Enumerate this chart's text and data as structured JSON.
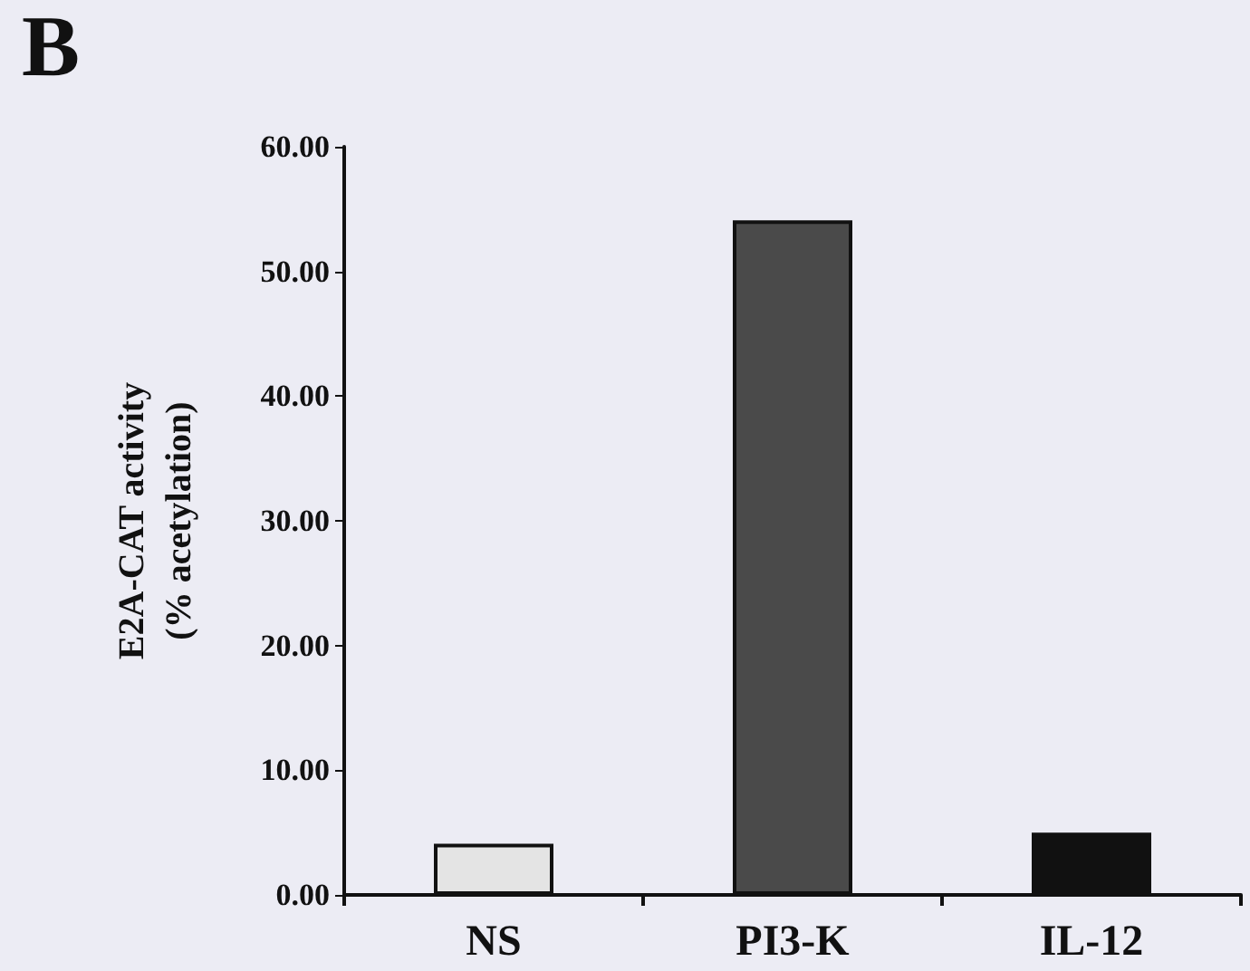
{
  "chart_data": {
    "type": "bar",
    "ylabel": "E2A-CAT activity\n(% acetylation)",
    "annotations": [
      "B"
    ],
    "categories": [
      "NS",
      "PI3-K",
      "IL-12"
    ],
    "values": [
      4.1,
      54.1,
      5.0
    ],
    "colors": [
      "#e4e4e4",
      "#4a4a4a",
      "#111111"
    ],
    "ylim": [
      0,
      60
    ],
    "yticks": [
      {
        "value": 0,
        "label": "0.00"
      },
      {
        "value": 10,
        "label": "10.00"
      },
      {
        "value": 20,
        "label": "20.00"
      },
      {
        "value": 30,
        "label": "30.00"
      },
      {
        "value": 40,
        "label": "40.00"
      },
      {
        "value": 50,
        "label": "50.00"
      },
      {
        "value": 60,
        "label": "60.00"
      }
    ],
    "grid": false
  }
}
